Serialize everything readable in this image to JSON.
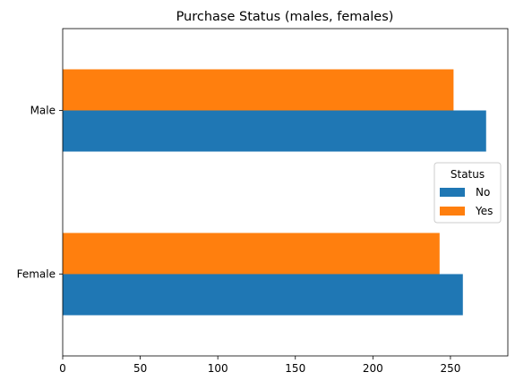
{
  "chart_data": {
    "type": "bar",
    "orientation": "horizontal",
    "title": "Purchase Status (males, females)",
    "xlabel": "",
    "ylabel": "",
    "categories": [
      "Female",
      "Male"
    ],
    "series": [
      {
        "name": "No",
        "values": [
          258,
          273
        ],
        "color": "#1f77b4"
      },
      {
        "name": "Yes",
        "values": [
          243,
          252
        ],
        "color": "#ff7f0e"
      }
    ],
    "xlim": [
      0,
      287
    ],
    "xticks": [
      0,
      50,
      100,
      150,
      200,
      250
    ],
    "grid": false,
    "legend": {
      "title": "Status",
      "placement": "center-right"
    }
  }
}
